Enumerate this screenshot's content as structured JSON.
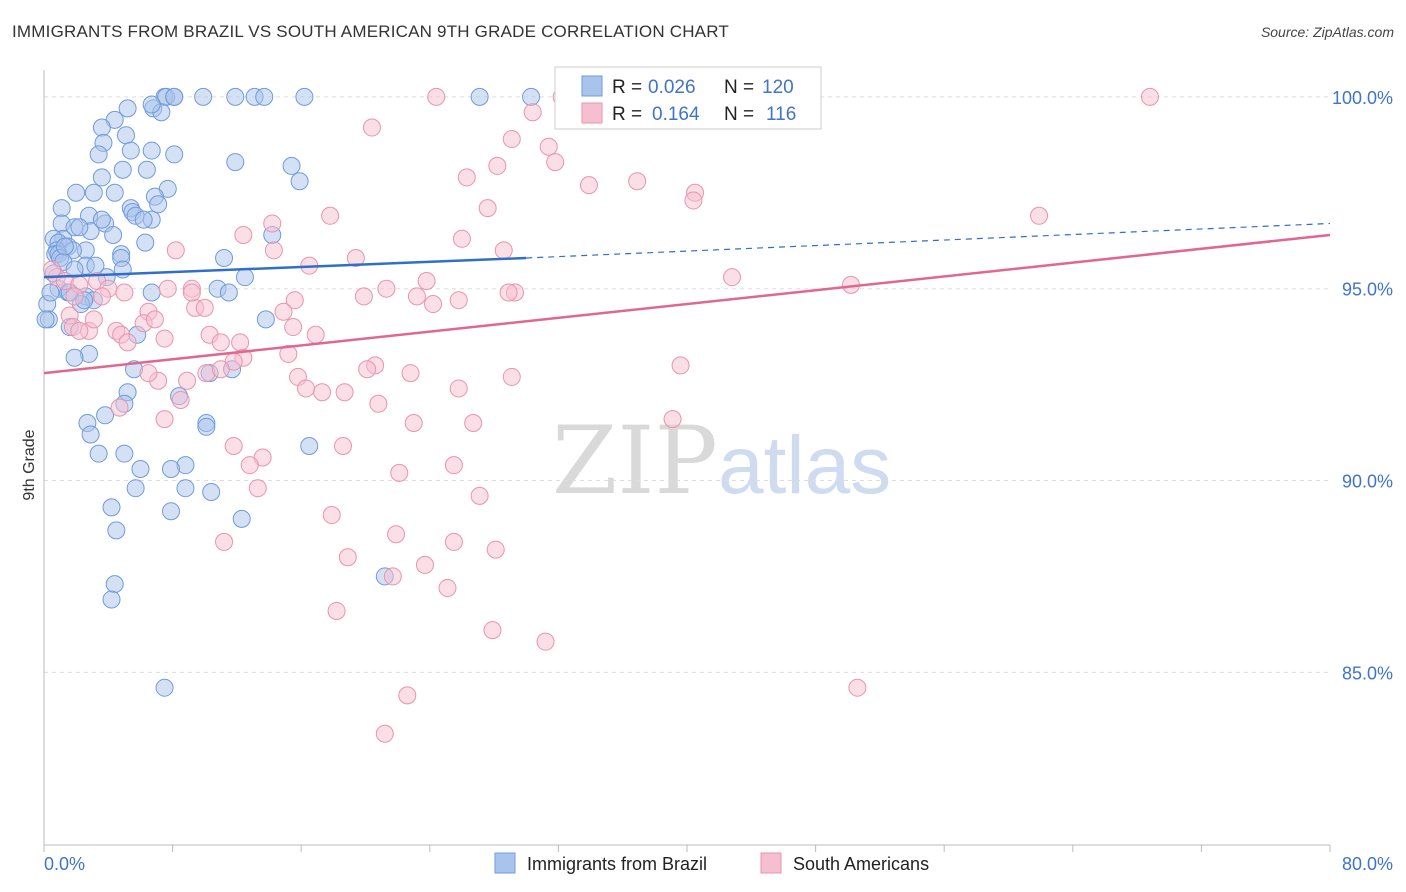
{
  "title": "IMMIGRANTS FROM BRAZIL VS SOUTH AMERICAN 9TH GRADE CORRELATION CHART",
  "source": "Source: ZipAtlas.com",
  "watermark": {
    "zip": "ZIP",
    "atlas": "atlas"
  },
  "colors": {
    "blue_fill": "#a9c4ec",
    "blue_stroke": "#6f9bdc",
    "blue_line": "#2f6fcb",
    "pink_fill": "#f6bfd0",
    "pink_stroke": "#ea93ae",
    "pink_line": "#e0678f",
    "tick_label": "#3f74c8",
    "grid": "#dddddd"
  },
  "legend": {
    "rows": [
      {
        "r_label": "R =",
        "r_value": "0.026",
        "n_label": "N =",
        "n_value": "120"
      },
      {
        "r_label": "R =",
        "r_value": "0.164",
        "n_label": "N =",
        "n_value": "116"
      }
    ]
  },
  "bottom_legend": [
    "Immigrants from Brazil",
    "South Americans"
  ],
  "chart_data": {
    "type": "scatter",
    "ylabel": "9th Grade",
    "x_tick_labels": [
      "0.0%",
      "80.0%"
    ],
    "y_tick_labels": [
      "100.0%",
      "95.0%",
      "90.0%",
      "85.0%"
    ],
    "y_tick_values": [
      100,
      95,
      90,
      85
    ],
    "xlim": [
      0,
      80
    ],
    "ylim": [
      80.5,
      100.7
    ],
    "series": [
      {
        "name": "Immigrants from Brazil",
        "r": 0.026,
        "n": 120,
        "trend": {
          "x": [
            0,
            30
          ],
          "y": [
            95.3,
            95.8
          ],
          "dashed_to": [
            80,
            96.7
          ]
        },
        "points": [
          [
            7.5,
            100
          ],
          [
            7.6,
            100
          ],
          [
            8.1,
            100
          ],
          [
            8.1,
            100
          ],
          [
            9.9,
            100
          ],
          [
            11.9,
            100
          ],
          [
            13.1,
            100
          ],
          [
            13.7,
            100
          ],
          [
            16.2,
            100
          ],
          [
            27.1,
            100
          ],
          [
            5.2,
            99.7
          ],
          [
            6.8,
            99.7
          ],
          [
            7.3,
            99.6
          ],
          [
            4.4,
            99.4
          ],
          [
            6.7,
            99.8
          ],
          [
            3.6,
            99.2
          ],
          [
            5.1,
            99
          ],
          [
            3.7,
            98.8
          ],
          [
            5.4,
            98.6
          ],
          [
            6.7,
            98.6
          ],
          [
            3.4,
            98.5
          ],
          [
            8.1,
            98.5
          ],
          [
            11.9,
            98.3
          ],
          [
            15.4,
            98.2
          ],
          [
            6.4,
            98.1
          ],
          [
            4.9,
            98.1
          ],
          [
            3.6,
            97.9
          ],
          [
            15.9,
            97.8
          ],
          [
            2,
            97.5
          ],
          [
            4.4,
            97.5
          ],
          [
            3.1,
            97.5
          ],
          [
            7.7,
            97.6
          ],
          [
            6.9,
            97.4
          ],
          [
            1.1,
            97.1
          ],
          [
            5.4,
            97.1
          ],
          [
            5.5,
            97
          ],
          [
            5.7,
            96.9
          ],
          [
            6.7,
            96.8
          ],
          [
            6.2,
            96.8
          ],
          [
            2.8,
            96.9
          ],
          [
            3.8,
            96.7
          ],
          [
            1.1,
            96.7
          ],
          [
            1.9,
            96.6
          ],
          [
            2.9,
            96.5
          ],
          [
            4.3,
            96.4
          ],
          [
            1.2,
            96.3
          ],
          [
            0.6,
            96.3
          ],
          [
            0.9,
            96.2
          ],
          [
            1.5,
            96.1
          ],
          [
            2.6,
            96
          ],
          [
            0.8,
            96
          ],
          [
            1.8,
            96
          ],
          [
            0.7,
            95.9
          ],
          [
            0.9,
            95.9
          ],
          [
            1,
            95.8
          ],
          [
            1.2,
            95.7
          ],
          [
            4.8,
            95.9
          ],
          [
            4.8,
            95.8
          ],
          [
            2.6,
            95.6
          ],
          [
            11.2,
            95.8
          ],
          [
            14.2,
            96.4
          ],
          [
            4.9,
            95.5
          ],
          [
            1.9,
            95.5
          ],
          [
            3.9,
            95.3
          ],
          [
            12.5,
            95.3
          ],
          [
            0.9,
            95
          ],
          [
            1.5,
            94.9
          ],
          [
            2.6,
            94.8
          ],
          [
            3.1,
            94.7
          ],
          [
            6.7,
            94.9
          ],
          [
            10.8,
            95
          ],
          [
            11.5,
            94.9
          ],
          [
            2.3,
            94.6
          ],
          [
            0.2,
            94.6
          ],
          [
            0.3,
            94.2
          ],
          [
            0.1,
            94.2
          ],
          [
            1.6,
            94
          ],
          [
            13.8,
            94.2
          ],
          [
            5.8,
            93.8
          ],
          [
            2.8,
            93.3
          ],
          [
            1.9,
            93.2
          ],
          [
            5.6,
            92.9
          ],
          [
            10.3,
            92.8
          ],
          [
            11.7,
            92.9
          ],
          [
            5.2,
            92.3
          ],
          [
            5,
            92
          ],
          [
            8.4,
            92.2
          ],
          [
            3.8,
            91.7
          ],
          [
            2.7,
            91.5
          ],
          [
            10.1,
            91.5
          ],
          [
            10.1,
            91.4
          ],
          [
            2.9,
            91.2
          ],
          [
            16.5,
            90.9
          ],
          [
            5,
            90.7
          ],
          [
            3.4,
            90.7
          ],
          [
            8.8,
            90.4
          ],
          [
            6,
            90.3
          ],
          [
            7.9,
            90.3
          ],
          [
            8.8,
            89.8
          ],
          [
            10.4,
            89.7
          ],
          [
            5.7,
            89.8
          ],
          [
            4.2,
            89.3
          ],
          [
            7.9,
            89.2
          ],
          [
            12.3,
            89
          ],
          [
            4.5,
            88.7
          ],
          [
            21.2,
            87.5
          ],
          [
            4.4,
            87.3
          ],
          [
            4.2,
            86.9
          ],
          [
            7.5,
            84.6
          ],
          [
            30.3,
            100
          ],
          [
            2.2,
            96.6
          ],
          [
            3.6,
            96.8
          ],
          [
            1.3,
            96.1
          ],
          [
            0.6,
            95.4
          ],
          [
            0.4,
            94.9
          ],
          [
            2.5,
            94.7
          ],
          [
            1.6,
            94.9
          ],
          [
            6.3,
            96.2
          ],
          [
            3.2,
            95.6
          ],
          [
            7.1,
            97.2
          ]
        ]
      },
      {
        "name": "South Americans",
        "r": 0.164,
        "n": 116,
        "trend": {
          "x": [
            0,
            80
          ],
          "y": [
            92.8,
            96.4
          ]
        },
        "points": [
          [
            24.4,
            100
          ],
          [
            32.2,
            100
          ],
          [
            68.8,
            100
          ],
          [
            30.4,
            99.6
          ],
          [
            20.4,
            99.2
          ],
          [
            29.1,
            98.9
          ],
          [
            31.4,
            98.7
          ],
          [
            28.2,
            98.2
          ],
          [
            31.8,
            98.3
          ],
          [
            26.3,
            97.9
          ],
          [
            36.9,
            97.8
          ],
          [
            40.5,
            97.5
          ],
          [
            40.4,
            97.3
          ],
          [
            27.6,
            97.1
          ],
          [
            17.8,
            96.9
          ],
          [
            61.9,
            96.9
          ],
          [
            14.2,
            96.7
          ],
          [
            12.4,
            96.4
          ],
          [
            14.3,
            96
          ],
          [
            8.2,
            96
          ],
          [
            19.4,
            95.8
          ],
          [
            28.6,
            96
          ],
          [
            16.5,
            95.6
          ],
          [
            42.8,
            95.3
          ],
          [
            23.8,
            95.2
          ],
          [
            7.7,
            95
          ],
          [
            9.2,
            95
          ],
          [
            19.9,
            94.8
          ],
          [
            21.3,
            95
          ],
          [
            25.8,
            94.7
          ],
          [
            15.6,
            94.7
          ],
          [
            29.3,
            94.9
          ],
          [
            50.2,
            95.1
          ],
          [
            23.2,
            94.8
          ],
          [
            24.2,
            94.6
          ],
          [
            14.9,
            94.4
          ],
          [
            9.4,
            94.5
          ],
          [
            10,
            94.5
          ],
          [
            6.5,
            94.4
          ],
          [
            15.5,
            94
          ],
          [
            6.2,
            94.1
          ],
          [
            4.5,
            93.9
          ],
          [
            16.9,
            93.8
          ],
          [
            10.3,
            93.8
          ],
          [
            11,
            93.6
          ],
          [
            7.5,
            93.7
          ],
          [
            4.8,
            93.8
          ],
          [
            5.2,
            93.6
          ],
          [
            12.2,
            93.6
          ],
          [
            2.8,
            93.9
          ],
          [
            15.2,
            93.3
          ],
          [
            12.4,
            93.2
          ],
          [
            11.8,
            93.1
          ],
          [
            20.6,
            93
          ],
          [
            20.1,
            92.9
          ],
          [
            39.6,
            93
          ],
          [
            22.8,
            92.8
          ],
          [
            10.1,
            92.8
          ],
          [
            15.8,
            92.7
          ],
          [
            29.1,
            92.7
          ],
          [
            7.1,
            92.6
          ],
          [
            11,
            92.9
          ],
          [
            8.9,
            92.6
          ],
          [
            6.5,
            92.8
          ],
          [
            25.8,
            92.4
          ],
          [
            16.3,
            92.4
          ],
          [
            17.3,
            92.3
          ],
          [
            18.7,
            92.3
          ],
          [
            20.8,
            92
          ],
          [
            8.5,
            92.1
          ],
          [
            4.7,
            91.9
          ],
          [
            7.5,
            91.6
          ],
          [
            23,
            91.5
          ],
          [
            26.7,
            91.5
          ],
          [
            39.1,
            91.6
          ],
          [
            11.8,
            90.9
          ],
          [
            18.6,
            90.9
          ],
          [
            13.6,
            90.6
          ],
          [
            12.8,
            90.4
          ],
          [
            25.5,
            90.4
          ],
          [
            22.1,
            90.2
          ],
          [
            13.3,
            89.8
          ],
          [
            27.1,
            89.6
          ],
          [
            17.9,
            89.1
          ],
          [
            21.9,
            88.6
          ],
          [
            25.5,
            88.4
          ],
          [
            11.2,
            88.4
          ],
          [
            28.1,
            88.2
          ],
          [
            18.9,
            88
          ],
          [
            23.7,
            87.8
          ],
          [
            21.7,
            87.5
          ],
          [
            25.1,
            87.2
          ],
          [
            18.2,
            86.6
          ],
          [
            27.9,
            86.1
          ],
          [
            31.2,
            85.8
          ],
          [
            22.6,
            84.4
          ],
          [
            50.6,
            84.6
          ],
          [
            21.2,
            83.4
          ],
          [
            0.8,
            95.3
          ],
          [
            1.3,
            95.2
          ],
          [
            2.2,
            95.1
          ],
          [
            3.3,
            95.2
          ],
          [
            4,
            95
          ],
          [
            1.9,
            94.8
          ],
          [
            3.6,
            94.8
          ],
          [
            0.5,
            95.5
          ],
          [
            1.6,
            94.3
          ],
          [
            1.8,
            94
          ],
          [
            2.2,
            93.9
          ],
          [
            5,
            94.9
          ],
          [
            28.9,
            94.9
          ],
          [
            26,
            96.3
          ],
          [
            33.9,
            97.7
          ],
          [
            3.1,
            94.2
          ],
          [
            6.9,
            94.2
          ],
          [
            9.2,
            94.9
          ]
        ]
      }
    ]
  }
}
